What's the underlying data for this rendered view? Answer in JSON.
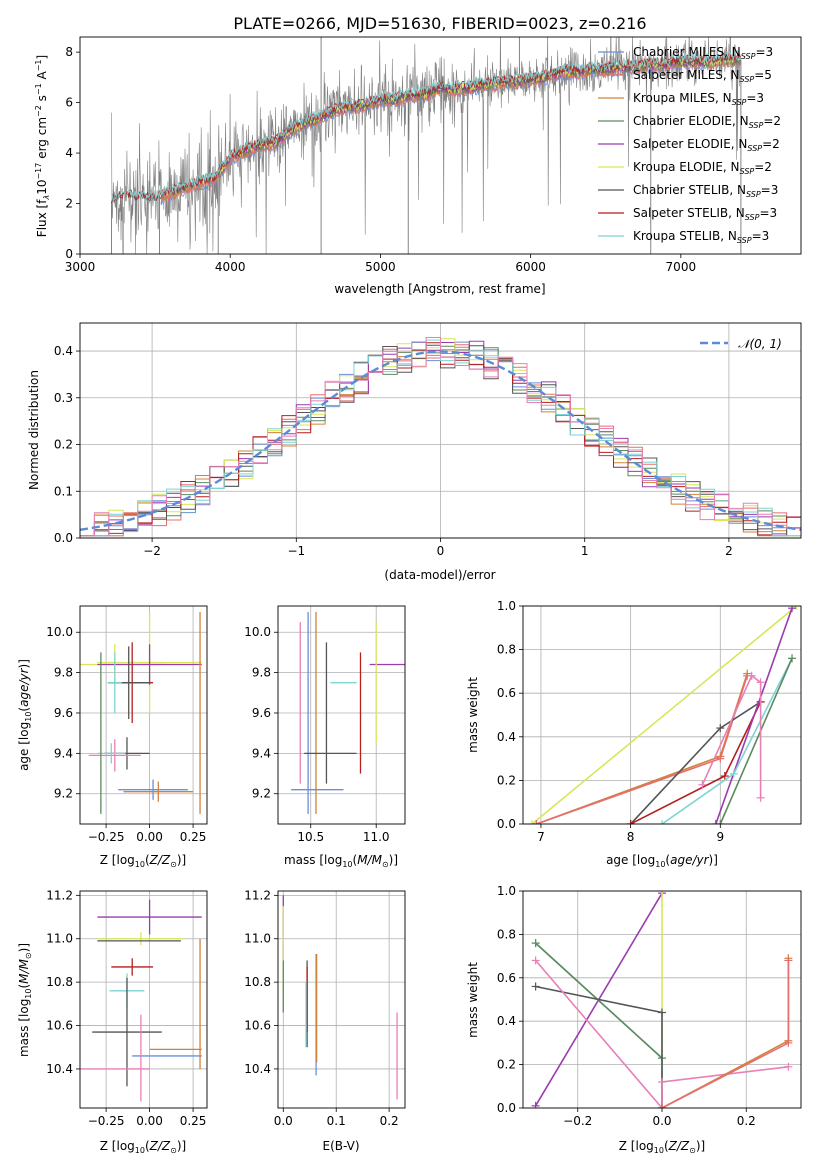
{
  "figure_title": "PLATE=0266, MJD=51630, FIBERID=0023, z=0.216",
  "colors": {
    "Chabrier MILES": "#6a8fd8",
    "Salpeter MILES": "#e56f6f",
    "Kroupa MILES": "#d1823a",
    "Chabrier ELODIE": "#5d8a5d",
    "Salpeter ELODIE": "#9b3bb0",
    "Kroupa ELODIE": "#d9e65a",
    "Chabrier STELIB": "#555555",
    "Salpeter STELIB": "#b51f1f",
    "Kroupa STELIB": "#7fd3d3",
    "pink": "#e87fb8",
    "data": "#808080",
    "normal": "#5b8bd9"
  },
  "chart_data": [
    {
      "type": "line",
      "id": "spectrum",
      "title": "PLATE=0266, MJD=51630, FIBERID=0023, z=0.216",
      "xlabel": "wavelength [Angstrom, rest frame]",
      "ylabel": "Flux [f$_\\lambda$10$^{-17}$ erg cm$^{-2}$ s$^{-1}$ A$^{-1}$]",
      "ylabel_parts": [
        "Flux [f",
        "λ",
        "10",
        "−17",
        " erg cm",
        "−2",
        " s",
        "−1",
        " A",
        "−1",
        "]"
      ],
      "xlim": [
        3000,
        7800
      ],
      "ylim": [
        0,
        8.6
      ],
      "xticks": [
        "3000",
        "4000",
        "5000",
        "6000",
        "7000"
      ],
      "yticks": [
        "0",
        "2",
        "4",
        "6",
        "8"
      ],
      "legend_position": "top-right",
      "legend": [
        {
          "name": "Chabrier MILES",
          "nssp": "3"
        },
        {
          "name": "Salpeter MILES",
          "nssp": "5"
        },
        {
          "name": "Kroupa MILES",
          "nssp": "3"
        },
        {
          "name": "Chabrier ELODIE",
          "nssp": "2"
        },
        {
          "name": "Salpeter ELODIE",
          "nssp": "2"
        },
        {
          "name": "Kroupa ELODIE",
          "nssp": "2"
        },
        {
          "name": "Chabrier STELIB",
          "nssp": "3"
        },
        {
          "name": "Salpeter STELIB",
          "nssp": "3"
        },
        {
          "name": "Kroupa STELIB",
          "nssp": "3"
        }
      ],
      "continuum": {
        "x": [
          3210,
          3300,
          3400,
          3500,
          3600,
          3700,
          3800,
          3900,
          4000,
          4100,
          4200,
          4300,
          4400,
          4500,
          4600,
          4700,
          4800,
          4900,
          5000,
          5100,
          5200,
          5300,
          5400,
          5500,
          5600,
          5700,
          5800,
          5900,
          6000,
          6100,
          6200,
          6300,
          6400,
          6500,
          6600,
          6700,
          6800,
          6900,
          7000,
          7100,
          7200,
          7300,
          7400
        ],
        "y": [
          2.1,
          2.3,
          2.2,
          2.2,
          2.4,
          2.6,
          2.8,
          3.0,
          3.8,
          4.1,
          4.3,
          4.4,
          4.9,
          5.2,
          5.4,
          5.7,
          5.8,
          5.9,
          6.1,
          6.1,
          6.3,
          6.3,
          6.6,
          6.5,
          6.6,
          6.7,
          6.8,
          6.8,
          6.9,
          7.0,
          7.2,
          7.2,
          7.3,
          7.3,
          7.4,
          7.4,
          7.5,
          7.5,
          7.6,
          7.6,
          7.6,
          7.7,
          7.7
        ]
      }
    },
    {
      "type": "line",
      "id": "residuals",
      "xlabel": "(data-model)/error",
      "ylabel": "Normed distribution",
      "xlim": [
        -2.5,
        2.5
      ],
      "ylim": [
        0,
        0.46
      ],
      "xticks": [
        "−2",
        "−1",
        "0",
        "1",
        "2"
      ],
      "yticks": [
        "0.0",
        "0.1",
        "0.2",
        "0.3",
        "0.4"
      ],
      "legend_position": "top-right",
      "legend": [
        {
          "name": "$\\mathcal{N}(0,1)$",
          "display": "𝒩(0, 1)"
        }
      ],
      "bin_width": 0.1
    },
    {
      "type": "scatter",
      "id": "age-vs-Z",
      "xlabel": "Z [log$_{10}$($Z/Z_\\odot$)]",
      "ylabel": "age [log$_{10}$($age/yr$)]",
      "xlim": [
        -0.4,
        0.33
      ],
      "ylim": [
        9.05,
        10.13
      ],
      "xticks": [
        "−0.25",
        "0.00",
        "0.25"
      ],
      "yticks": [
        "9.2",
        "9.4",
        "9.6",
        "9.8",
        "10.0"
      ],
      "points": [
        {
          "x": -0.2,
          "y": 9.84,
          "xerr": 0.28,
          "yerr": 0.1,
          "color": "Kroupa ELODIE"
        },
        {
          "x": 0.0,
          "y": 9.85,
          "xerr": 0.3,
          "yerr": 0.25,
          "color": "Kroupa ELODIE"
        },
        {
          "x": 0.0,
          "y": 9.84,
          "xerr": 0.3,
          "yerr": 0.1,
          "color": "Salpeter ELODIE"
        },
        {
          "x": -0.1,
          "y": 9.75,
          "xerr": 0.12,
          "yerr": 0.2,
          "color": "Salpeter STELIB"
        },
        {
          "x": -0.12,
          "y": 9.75,
          "xerr": 0.12,
          "yerr": 0.18,
          "color": "Chabrier STELIB"
        },
        {
          "x": -0.2,
          "y": 9.75,
          "xerr": 0.04,
          "yerr": 0.15,
          "color": "Kroupa STELIB"
        },
        {
          "x": -0.13,
          "y": 9.4,
          "xerr": 0.13,
          "yerr": 0.08,
          "color": "Chabrier STELIB"
        },
        {
          "x": -0.2,
          "y": 9.39,
          "xerr": 0.15,
          "yerr": 0.08,
          "color": "pink"
        },
        {
          "x": -0.22,
          "y": 9.4,
          "xerr": 0.08,
          "yerr": 0.05,
          "color": "Kroupa STELIB"
        },
        {
          "x": 0.02,
          "y": 9.22,
          "xerr": 0.2,
          "yerr": 0.05,
          "color": "Chabrier MILES"
        },
        {
          "x": 0.05,
          "y": 9.21,
          "xerr": 0.2,
          "yerr": 0.05,
          "color": "Kroupa MILES"
        },
        {
          "x": 0.29,
          "y": 9.6,
          "xerr": 0.0,
          "yerr": 0.5,
          "color": "Kroupa MILES"
        },
        {
          "x": -0.28,
          "y": 9.5,
          "xerr": 0.0,
          "yerr": 0.4,
          "color": "Chabrier ELODIE"
        }
      ]
    },
    {
      "type": "scatter",
      "id": "age-vs-mass",
      "xlabel": "mass [log$_{10}$($M/M_\\odot$)]",
      "ylabel": "",
      "xlim": [
        10.25,
        11.22
      ],
      "ylim": [
        9.05,
        10.13
      ],
      "xticks": [
        "10.5",
        "11.0"
      ],
      "yticks": [
        "9.2",
        "9.4",
        "9.6",
        "9.8",
        "10.0"
      ],
      "points": [
        {
          "x": 10.48,
          "y": 9.6,
          "xerr": 0.0,
          "yerr": 0.5,
          "color": "Chabrier MILES"
        },
        {
          "x": 10.54,
          "y": 9.6,
          "xerr": 0.0,
          "yerr": 0.5,
          "color": "Kroupa MILES"
        },
        {
          "x": 10.42,
          "y": 9.65,
          "xerr": 0.0,
          "yerr": 0.4,
          "color": "pink"
        },
        {
          "x": 10.62,
          "y": 9.6,
          "xerr": 0.0,
          "yerr": 0.35,
          "color": "Chabrier STELIB"
        },
        {
          "x": 10.88,
          "y": 9.6,
          "xerr": 0.0,
          "yerr": 0.3,
          "color": "Salpeter STELIB"
        },
        {
          "x": 11.1,
          "y": 9.84,
          "xerr": 0.15,
          "yerr": 0.0,
          "color": "Salpeter ELODIE"
        },
        {
          "x": 11.0,
          "y": 9.75,
          "xerr": 0.0,
          "yerr": 0.3,
          "color": "Kroupa ELODIE"
        },
        {
          "x": 10.65,
          "y": 9.4,
          "xerr": 0.2,
          "yerr": 0.0,
          "color": "Chabrier STELIB"
        },
        {
          "x": 10.55,
          "y": 9.22,
          "xerr": 0.2,
          "yerr": 0.0,
          "color": "Chabrier MILES"
        },
        {
          "x": 10.75,
          "y": 9.75,
          "xerr": 0.1,
          "yerr": 0.0,
          "color": "Kroupa STELIB"
        }
      ]
    },
    {
      "type": "line",
      "id": "mass-weight-vs-age",
      "xlabel": "age [log$_{10}$($age/yr$)]",
      "ylabel": "mass weight",
      "xlim": [
        6.8,
        9.9
      ],
      "ylim": [
        0,
        1.0
      ],
      "xticks": [
        "7",
        "8",
        "9"
      ],
      "yticks": [
        "0.0",
        "0.2",
        "0.4",
        "0.6",
        "0.8",
        "1.0"
      ],
      "series": [
        {
          "color": "Kroupa ELODIE",
          "x": [
            6.9,
            9.85
          ],
          "y": [
            0.0,
            1.0
          ]
        },
        {
          "color": "Kroupa MILES",
          "x": [
            6.95,
            9.0,
            9.3
          ],
          "y": [
            0.0,
            0.31,
            0.69
          ]
        },
        {
          "color": "Salpeter MILES",
          "x": [
            6.95,
            9.0,
            9.3
          ],
          "y": [
            0.0,
            0.3,
            0.68
          ]
        },
        {
          "color": "Chabrier STELIB",
          "x": [
            8.0,
            9.0,
            9.45
          ],
          "y": [
            0.0,
            0.44,
            0.56
          ]
        },
        {
          "color": "Salpeter STELIB",
          "x": [
            8.0,
            9.05,
            9.45
          ],
          "y": [
            0.0,
            0.22,
            0.56
          ]
        },
        {
          "color": "Salpeter ELODIE",
          "x": [
            8.95,
            9.8
          ],
          "y": [
            0.0,
            0.99
          ]
        },
        {
          "color": "Kroupa STELIB",
          "x": [
            8.35,
            9.15,
            9.8
          ],
          "y": [
            0.0,
            0.23,
            0.76
          ]
        },
        {
          "color": "Chabrier ELODIE",
          "x": [
            9.0,
            9.8
          ],
          "y": [
            0.0,
            0.76
          ]
        },
        {
          "color": "pink",
          "x": [
            8.8,
            9.35,
            9.45,
            9.45
          ],
          "y": [
            0.18,
            0.68,
            0.65,
            0.12
          ]
        }
      ]
    },
    {
      "type": "scatter",
      "id": "mass-vs-Z",
      "xlabel": "Z [log$_{10}$($Z/Z_\\odot$)]",
      "ylabel": "mass [log$_{10}$($M/M_\\odot$)]",
      "xlim": [
        -0.4,
        0.33
      ],
      "ylim": [
        10.22,
        11.22
      ],
      "xticks": [
        "−0.25",
        "0.00",
        "0.25"
      ],
      "yticks": [
        "10.4",
        "10.6",
        "10.8",
        "11.0",
        "11.2"
      ],
      "points": [
        {
          "x": 0.0,
          "y": 11.1,
          "xerr": 0.3,
          "yerr": 0.08,
          "color": "Salpeter ELODIE"
        },
        {
          "x": -0.05,
          "y": 11.0,
          "xerr": 0.25,
          "yerr": 0.03,
          "color": "Kroupa ELODIE"
        },
        {
          "x": -0.06,
          "y": 10.99,
          "xerr": 0.24,
          "yerr": 0.0,
          "color": "Chabrier STELIB"
        },
        {
          "x": -0.1,
          "y": 10.87,
          "xerr": 0.12,
          "yerr": 0.04,
          "color": "Salpeter STELIB"
        },
        {
          "x": -0.13,
          "y": 10.76,
          "xerr": 0.1,
          "yerr": 0.08,
          "color": "Kroupa STELIB"
        },
        {
          "x": -0.13,
          "y": 10.57,
          "xerr": 0.2,
          "yerr": 0.25,
          "color": "Chabrier STELIB"
        },
        {
          "x": 0.15,
          "y": 10.49,
          "xerr": 0.15,
          "yerr": 0.0,
          "color": "Kroupa MILES"
        },
        {
          "x": 0.1,
          "y": 10.46,
          "xerr": 0.2,
          "yerr": 0.0,
          "color": "Chabrier MILES"
        },
        {
          "x": -0.2,
          "y": 10.4,
          "xerr": 0.2,
          "yerr": 0.0,
          "color": "pink"
        },
        {
          "x": -0.05,
          "y": 10.45,
          "xerr": 0.0,
          "yerr": 0.2,
          "color": "pink"
        },
        {
          "x": 0.29,
          "y": 10.7,
          "xerr": 0.0,
          "yerr": 0.3,
          "color": "Kroupa MILES"
        }
      ]
    },
    {
      "type": "scatter",
      "id": "mass-vs-ebv",
      "xlabel": "E(B-V)",
      "ylabel": "",
      "xlim": [
        -0.01,
        0.23
      ],
      "ylim": [
        10.22,
        11.22
      ],
      "xticks": [
        "0.0",
        "0.1",
        "0.2"
      ],
      "yticks": [
        "10.4",
        "10.6",
        "10.8",
        "11.0",
        "11.2"
      ],
      "points": [
        {
          "x": 0.0,
          "y": 11.05,
          "xerr": 0.0,
          "yerr": 0.15,
          "color": "Salpeter ELODIE"
        },
        {
          "x": 0.0,
          "y": 10.95,
          "xerr": 0.0,
          "yerr": 0.2,
          "color": "Kroupa ELODIE"
        },
        {
          "x": 0.0,
          "y": 10.78,
          "xerr": 0.0,
          "yerr": 0.12,
          "color": "Chabrier ELODIE"
        },
        {
          "x": 0.045,
          "y": 10.7,
          "xerr": 0.0,
          "yerr": 0.2,
          "color": "Chabrier STELIB"
        },
        {
          "x": 0.045,
          "y": 10.72,
          "xerr": 0.0,
          "yerr": 0.15,
          "color": "Salpeter STELIB"
        },
        {
          "x": 0.043,
          "y": 10.65,
          "xerr": 0.0,
          "yerr": 0.15,
          "color": "Kroupa STELIB"
        },
        {
          "x": 0.062,
          "y": 10.65,
          "xerr": 0.0,
          "yerr": 0.28,
          "color": "Chabrier MILES"
        },
        {
          "x": 0.063,
          "y": 10.68,
          "xerr": 0.0,
          "yerr": 0.25,
          "color": "Kroupa MILES"
        },
        {
          "x": 0.215,
          "y": 10.46,
          "xerr": 0.0,
          "yerr": 0.2,
          "color": "pink"
        }
      ]
    },
    {
      "type": "line",
      "id": "mass-weight-vs-Z",
      "xlabel": "Z [log$_{10}$($Z/Z_\\odot$)]",
      "ylabel": "mass weight",
      "xlim": [
        -0.33,
        0.33
      ],
      "ylim": [
        0,
        1.0
      ],
      "xticks": [
        "−0.2",
        "0.0",
        "0.2"
      ],
      "yticks": [
        "0.0",
        "0.2",
        "0.4",
        "0.6",
        "0.8",
        "1.0"
      ],
      "series": [
        {
          "color": "Salpeter ELODIE",
          "x": [
            -0.3,
            0.0
          ],
          "y": [
            0.01,
            0.99
          ]
        },
        {
          "color": "Kroupa ELODIE",
          "x": [
            0.0,
            0.0
          ],
          "y": [
            0.0,
            1.0
          ]
        },
        {
          "color": "Kroupa STELIB",
          "x": [
            -0.3,
            0.0,
            0.0
          ],
          "y": [
            0.76,
            0.23,
            0.0
          ]
        },
        {
          "color": "Chabrier ELODIE",
          "x": [
            -0.3,
            0.0
          ],
          "y": [
            0.76,
            0.23
          ]
        },
        {
          "color": "Chabrier STELIB",
          "x": [
            -0.3,
            0.0,
            0.0
          ],
          "y": [
            0.56,
            0.44,
            0.0
          ]
        },
        {
          "color": "pink",
          "x": [
            -0.3,
            0.0,
            0.0,
            0.3
          ],
          "y": [
            0.68,
            0.0,
            0.12,
            0.19
          ]
        },
        {
          "color": "Kroupa MILES",
          "x": [
            0.0,
            0.3,
            0.3
          ],
          "y": [
            0.0,
            0.31,
            0.69
          ]
        },
        {
          "color": "Salpeter MILES",
          "x": [
            0.0,
            0.3,
            0.3
          ],
          "y": [
            0.0,
            0.3,
            0.68
          ]
        }
      ]
    }
  ]
}
